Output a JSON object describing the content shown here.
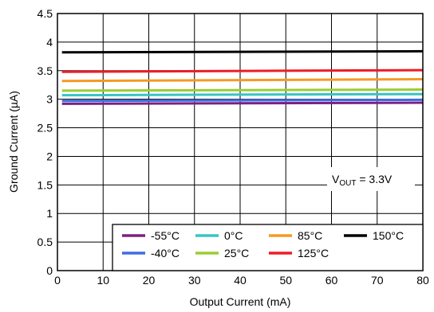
{
  "chart_data": {
    "type": "line",
    "xlabel": "Output Current (mA)",
    "ylabel": "Ground Current (µA)",
    "xlim": [
      0,
      80
    ],
    "ylim": [
      0,
      4.5
    ],
    "x_ticks": [
      "0",
      "10",
      "20",
      "30",
      "40",
      "50",
      "60",
      "70",
      "80"
    ],
    "y_ticks": [
      "0",
      "0.5",
      "1",
      "1.5",
      "2",
      "2.5",
      "3",
      "3.5",
      "4",
      "4.5"
    ],
    "grid": true,
    "annotation": {
      "prefix": "V",
      "subscript": "OUT",
      "suffix": " = 3.3V"
    },
    "legend_position": "bottom-right",
    "series": [
      {
        "name": "-55°C",
        "color": "#7B2081",
        "x": [
          1,
          80
        ],
        "y": [
          2.92,
          2.94
        ]
      },
      {
        "name": "-40°C",
        "color": "#3D6DE0",
        "x": [
          1,
          80
        ],
        "y": [
          2.97,
          2.99
        ]
      },
      {
        "name": "0°C",
        "color": "#39C4C4",
        "x": [
          1,
          80
        ],
        "y": [
          3.07,
          3.09
        ]
      },
      {
        "name": "25°C",
        "color": "#9ACD32",
        "x": [
          1,
          80
        ],
        "y": [
          3.15,
          3.17
        ]
      },
      {
        "name": "85°C",
        "color": "#F59A23",
        "x": [
          1,
          80
        ],
        "y": [
          3.32,
          3.35
        ]
      },
      {
        "name": "125°C",
        "color": "#EE1C25",
        "x": [
          1,
          80
        ],
        "y": [
          3.48,
          3.51
        ]
      },
      {
        "name": "150°C",
        "color": "#000000",
        "x": [
          1,
          80
        ],
        "y": [
          3.82,
          3.84
        ]
      }
    ]
  }
}
